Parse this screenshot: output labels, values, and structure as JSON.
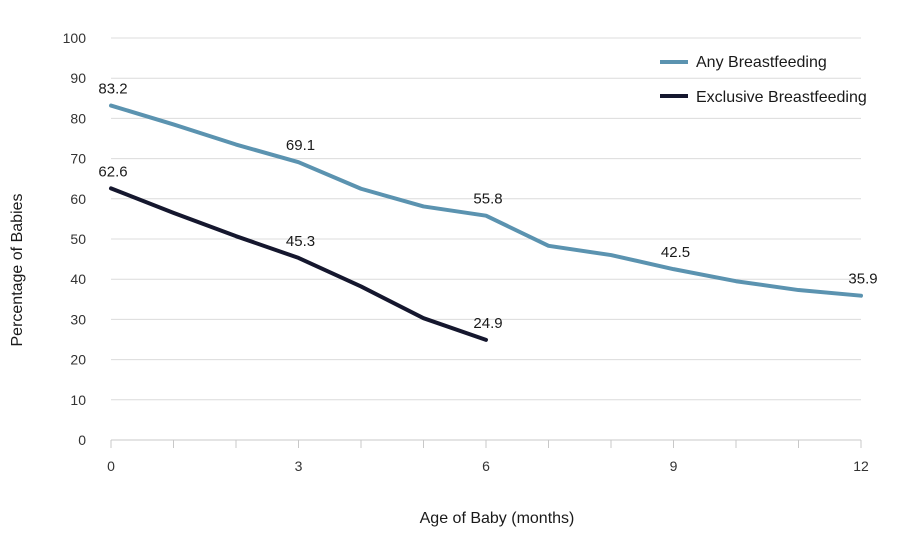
{
  "chart_data": {
    "type": "line",
    "xlabel": "Age of Baby (months)",
    "ylabel": "Percentage of Babies",
    "xlim": [
      0,
      12
    ],
    "ylim": [
      0,
      100
    ],
    "x_ticks": [
      0,
      3,
      6,
      9,
      12
    ],
    "y_ticks": [
      0,
      10,
      20,
      30,
      40,
      50,
      60,
      70,
      80,
      90,
      100
    ],
    "grid": "horizontal",
    "legend_position": "top-right",
    "series": [
      {
        "name": "Any Breastfeeding",
        "color": "#5b93b0",
        "x": [
          0,
          1,
          2,
          3,
          4,
          5,
          6,
          7,
          8,
          9,
          10,
          11,
          12
        ],
        "values": [
          83.2,
          78.5,
          73.5,
          69.1,
          62.5,
          58.1,
          55.8,
          48.3,
          46.0,
          42.5,
          39.5,
          37.3,
          35.9
        ],
        "labels": [
          {
            "x": 0,
            "text": "83.2"
          },
          {
            "x": 3,
            "text": "69.1"
          },
          {
            "x": 6,
            "text": "55.8"
          },
          {
            "x": 9,
            "text": "42.5"
          },
          {
            "x": 12,
            "text": "35.9"
          }
        ]
      },
      {
        "name": "Exclusive Breastfeeding",
        "color": "#15172e",
        "x": [
          0,
          1,
          2,
          3,
          4,
          5,
          6
        ],
        "values": [
          62.6,
          56.5,
          50.7,
          45.3,
          38.2,
          30.3,
          24.9
        ],
        "labels": [
          {
            "x": 0,
            "text": "62.6"
          },
          {
            "x": 3,
            "text": "45.3"
          },
          {
            "x": 6,
            "text": "24.9"
          }
        ]
      }
    ]
  }
}
